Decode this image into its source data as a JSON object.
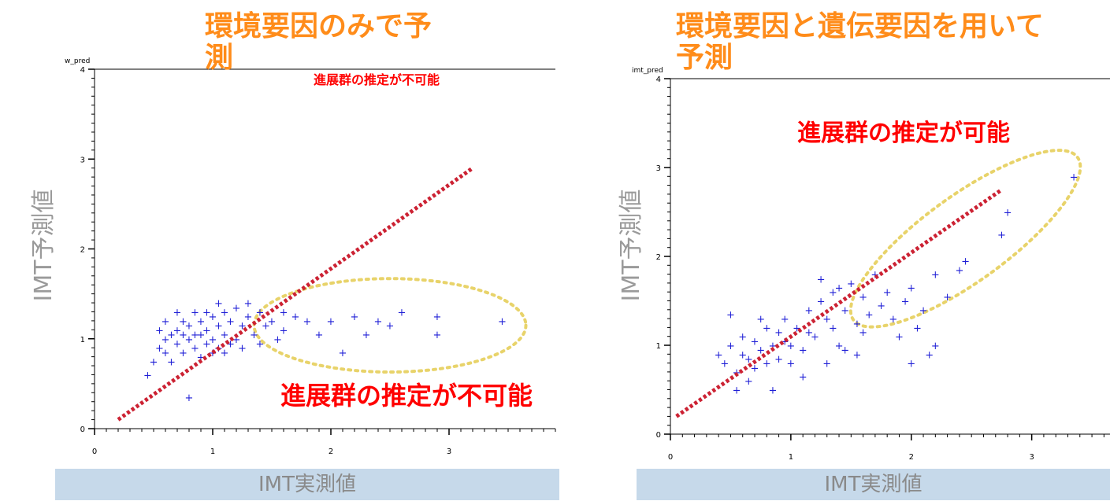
{
  "chart_data": [
    {
      "type": "scatter",
      "title": "環境要因のみで予\n測",
      "variable_label": "w_pred",
      "ylabel": "IMT予測値",
      "xlabel": "IMT実測値",
      "xlim": [
        0,
        3.9
      ],
      "ylim": [
        0,
        4
      ],
      "xticks": [
        "0",
        "1",
        "2",
        "3"
      ],
      "yticks": [
        "0",
        "1",
        "2",
        "3",
        "4"
      ],
      "annotations": [
        "進展群の推定が不可能",
        "進展群の推定が不可能"
      ],
      "reference_line": {
        "from": [
          0.2,
          0.1
        ],
        "to": [
          3.2,
          2.9
        ],
        "color": "#cc2233",
        "style": "dotted"
      },
      "highlight_ellipse": {
        "center": [
          2.5,
          1.15
        ],
        "rx": 1.15,
        "ry": 0.52,
        "color": "#e8d36a"
      },
      "points": [
        [
          0.45,
          0.6
        ],
        [
          0.5,
          0.75
        ],
        [
          0.55,
          0.9
        ],
        [
          0.6,
          1.0
        ],
        [
          0.6,
          0.85
        ],
        [
          0.65,
          1.05
        ],
        [
          0.7,
          0.95
        ],
        [
          0.7,
          1.1
        ],
        [
          0.75,
          1.2
        ],
        [
          0.75,
          0.85
        ],
        [
          0.8,
          1.0
        ],
        [
          0.8,
          1.15
        ],
        [
          0.85,
          1.3
        ],
        [
          0.85,
          0.9
        ],
        [
          0.9,
          1.05
        ],
        [
          0.9,
          1.2
        ],
        [
          0.95,
          0.95
        ],
        [
          0.95,
          1.1
        ],
        [
          1.0,
          1.25
        ],
        [
          1.0,
          1.0
        ],
        [
          1.05,
          1.15
        ],
        [
          1.05,
          0.9
        ],
        [
          1.1,
          1.05
        ],
        [
          1.1,
          1.3
        ],
        [
          1.15,
          1.2
        ],
        [
          1.2,
          1.0
        ],
        [
          1.2,
          1.35
        ],
        [
          1.25,
          1.15
        ],
        [
          1.3,
          1.25
        ],
        [
          1.35,
          1.05
        ],
        [
          1.4,
          1.3
        ],
        [
          1.45,
          1.15
        ],
        [
          1.5,
          1.2
        ],
        [
          1.55,
          1.0
        ],
        [
          1.6,
          1.1
        ],
        [
          1.7,
          1.25
        ],
        [
          1.8,
          1.2
        ],
        [
          1.9,
          1.05
        ],
        [
          2.0,
          1.2
        ],
        [
          2.1,
          0.85
        ],
        [
          2.2,
          1.25
        ],
        [
          2.3,
          1.05
        ],
        [
          2.4,
          1.2
        ],
        [
          2.5,
          1.15
        ],
        [
          2.6,
          1.3
        ],
        [
          2.9,
          1.25
        ],
        [
          2.9,
          1.05
        ],
        [
          3.45,
          1.2
        ],
        [
          0.8,
          0.35
        ],
        [
          0.65,
          0.75
        ],
        [
          0.55,
          1.1
        ],
        [
          0.7,
          1.3
        ],
        [
          0.85,
          1.05
        ],
        [
          0.95,
          1.3
        ],
        [
          1.0,
          0.85
        ],
        [
          1.15,
          0.95
        ],
        [
          1.25,
          0.9
        ],
        [
          1.3,
          1.4
        ],
        [
          0.75,
          1.05
        ],
        [
          0.9,
          0.8
        ],
        [
          1.05,
          1.4
        ],
        [
          0.6,
          1.2
        ],
        [
          1.1,
          0.85
        ],
        [
          1.4,
          0.95
        ],
        [
          1.6,
          1.3
        ]
      ]
    },
    {
      "type": "scatter",
      "title": "環境要因と遺伝要因を用いて\n予測",
      "variable_label": "imt_pred",
      "ylabel": "IMT予測値",
      "xlabel": "IMT実測値",
      "xlim": [
        0,
        3.65
      ],
      "ylim": [
        0,
        4
      ],
      "xticks": [
        "0",
        "1",
        "2",
        "3"
      ],
      "yticks": [
        "0",
        "1",
        "2",
        "3",
        "4"
      ],
      "annotations": [
        "進展群の推定が可能"
      ],
      "reference_line": {
        "from": [
          0.05,
          0.2
        ],
        "to": [
          2.75,
          2.75
        ],
        "color": "#cc2233",
        "style": "dotted"
      },
      "highlight_ellipse": {
        "center": [
          2.45,
          2.2
        ],
        "rx": 1.15,
        "ry": 0.48,
        "rotation": -36,
        "color": "#e8d36a"
      },
      "points": [
        [
          0.4,
          0.9
        ],
        [
          0.45,
          0.8
        ],
        [
          0.5,
          1.0
        ],
        [
          0.5,
          1.35
        ],
        [
          0.55,
          0.7
        ],
        [
          0.6,
          0.9
        ],
        [
          0.6,
          1.1
        ],
        [
          0.65,
          0.85
        ],
        [
          0.7,
          1.05
        ],
        [
          0.7,
          0.75
        ],
        [
          0.75,
          0.95
        ],
        [
          0.8,
          1.2
        ],
        [
          0.8,
          0.8
        ],
        [
          0.85,
          1.0
        ],
        [
          0.9,
          1.15
        ],
        [
          0.9,
          0.85
        ],
        [
          0.95,
          1.3
        ],
        [
          1.0,
          1.0
        ],
        [
          1.0,
          0.8
        ],
        [
          1.05,
          1.2
        ],
        [
          1.1,
          0.95
        ],
        [
          1.15,
          1.4
        ],
        [
          1.2,
          1.1
        ],
        [
          1.25,
          1.5
        ],
        [
          1.3,
          1.3
        ],
        [
          1.35,
          1.6
        ],
        [
          1.4,
          1.0
        ],
        [
          1.45,
          1.4
        ],
        [
          1.5,
          1.7
        ],
        [
          1.55,
          1.25
        ],
        [
          1.6,
          1.55
        ],
        [
          1.7,
          1.8
        ],
        [
          1.75,
          1.45
        ],
        [
          1.8,
          1.6
        ],
        [
          1.85,
          1.3
        ],
        [
          1.9,
          1.1
        ],
        [
          1.95,
          1.5
        ],
        [
          2.0,
          1.65
        ],
        [
          2.1,
          1.4
        ],
        [
          2.15,
          0.9
        ],
        [
          2.2,
          1.8
        ],
        [
          2.3,
          1.55
        ],
        [
          2.4,
          1.85
        ],
        [
          2.45,
          1.95
        ],
        [
          2.2,
          1.0
        ],
        [
          2.05,
          1.2
        ],
        [
          2.0,
          0.8
        ],
        [
          2.8,
          2.5
        ],
        [
          2.75,
          2.25
        ],
        [
          3.35,
          2.9
        ],
        [
          0.55,
          0.5
        ],
        [
          0.65,
          0.6
        ],
        [
          0.85,
          0.5
        ],
        [
          1.1,
          0.65
        ],
        [
          1.3,
          0.8
        ],
        [
          1.45,
          0.95
        ],
        [
          1.6,
          1.15
        ],
        [
          1.25,
          1.75
        ],
        [
          1.4,
          1.65
        ],
        [
          1.65,
          1.35
        ],
        [
          0.75,
          1.3
        ],
        [
          0.95,
          1.05
        ],
        [
          1.15,
          1.15
        ],
        [
          1.35,
          1.2
        ],
        [
          1.55,
          0.9
        ]
      ]
    }
  ]
}
